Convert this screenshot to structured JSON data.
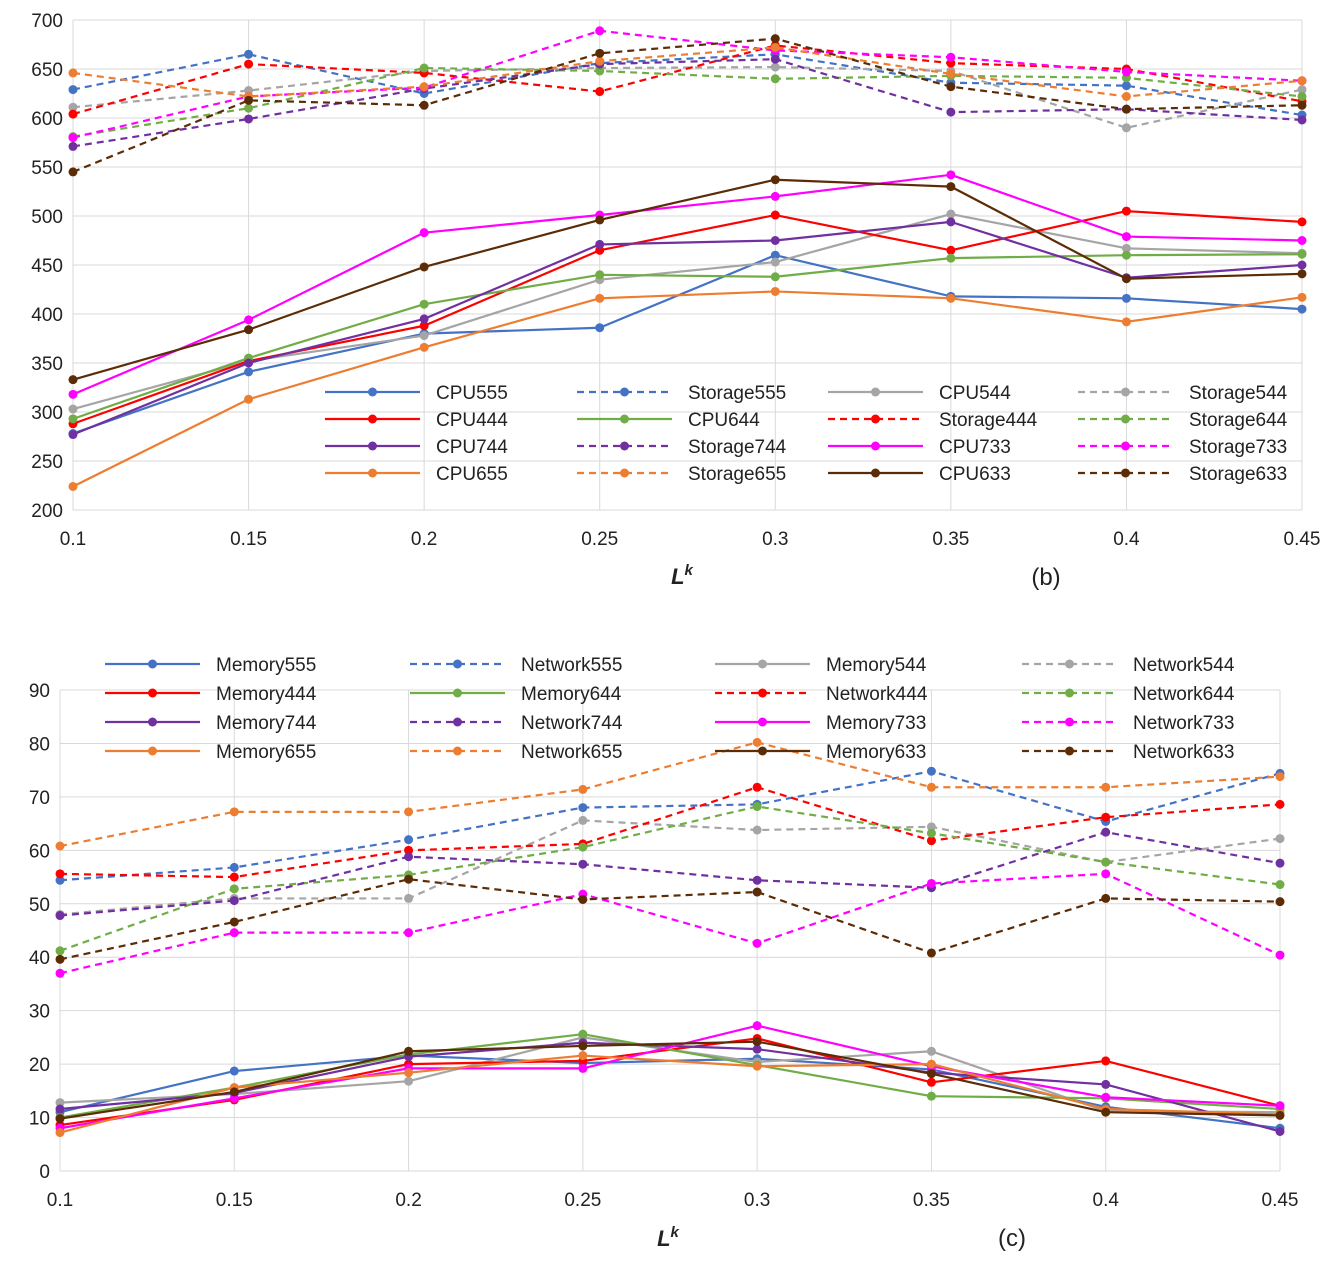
{
  "chart_data": [
    {
      "type": "line",
      "panel_label": "(b)",
      "xlabel": "L",
      "xlabel_sup": "k",
      "ylabel": "",
      "categories": [
        "0.1",
        "0.15",
        "0.2",
        "0.25",
        "0.3",
        "0.35",
        "0.4",
        "0.45"
      ],
      "ylim": [
        200,
        700
      ],
      "yticks": [
        "200",
        "250",
        "300",
        "350",
        "400",
        "450",
        "500",
        "550",
        "600",
        "650",
        "700"
      ],
      "legend_position": "inside-lower-right",
      "series": [
        {
          "name": "CPU555",
          "color": "#4472C4",
          "dash": false,
          "values": [
            278,
            341,
            380,
            386,
            460,
            418,
            416,
            405
          ]
        },
        {
          "name": "Storage555",
          "color": "#4472C4",
          "dash": true,
          "values": [
            629,
            665,
            625,
            656,
            665,
            636,
            633,
            603
          ]
        },
        {
          "name": "CPU544",
          "color": "#A5A5A5",
          "dash": false,
          "values": [
            303,
            352,
            378,
            435,
            453,
            502,
            467,
            462
          ]
        },
        {
          "name": "Storage544",
          "color": "#A5A5A5",
          "dash": true,
          "values": [
            611,
            628,
            648,
            651,
            652,
            648,
            590,
            629
          ]
        },
        {
          "name": "CPU444",
          "color": "#FF0000",
          "dash": false,
          "values": [
            288,
            352,
            388,
            465,
            501,
            465,
            505,
            494
          ]
        },
        {
          "name": "CPU644",
          "color": "#70AD47",
          "dash": false,
          "values": [
            293,
            355,
            410,
            440,
            438,
            457,
            460,
            461
          ]
        },
        {
          "name": "Storage444",
          "color": "#FF0000",
          "dash": true,
          "values": [
            604,
            655,
            646,
            627,
            674,
            656,
            650,
            617
          ]
        },
        {
          "name": "Storage644",
          "color": "#70AD47",
          "dash": true,
          "values": [
            581,
            610,
            651,
            648,
            640,
            643,
            641,
            622
          ]
        },
        {
          "name": "CPU744",
          "color": "#7030A0",
          "dash": false,
          "values": [
            277,
            350,
            395,
            471,
            475,
            494,
            437,
            450
          ]
        },
        {
          "name": "Storage744",
          "color": "#7030A0",
          "dash": true,
          "values": [
            571,
            599,
            630,
            655,
            660,
            606,
            609,
            598
          ]
        },
        {
          "name": "CPU733",
          "color": "#FF00FF",
          "dash": false,
          "values": [
            318,
            394,
            483,
            501,
            520,
            542,
            479,
            475
          ]
        },
        {
          "name": "Storage733",
          "color": "#FF00FF",
          "dash": true,
          "values": [
            580,
            622,
            631,
            689,
            669,
            662,
            647,
            638
          ]
        },
        {
          "name": "CPU655",
          "color": "#ED7D31",
          "dash": false,
          "values": [
            224,
            313,
            366,
            416,
            423,
            416,
            392,
            417
          ]
        },
        {
          "name": "Storage655",
          "color": "#ED7D31",
          "dash": true,
          "values": [
            646,
            622,
            632,
            658,
            672,
            645,
            622,
            638
          ]
        },
        {
          "name": "CPU633",
          "color": "#5B2C06",
          "dash": false,
          "values": [
            333,
            384,
            448,
            496,
            537,
            530,
            436,
            441
          ]
        },
        {
          "name": "Storage633",
          "color": "#5B2C06",
          "dash": true,
          "values": [
            545,
            618,
            613,
            666,
            681,
            632,
            609,
            613
          ]
        }
      ]
    },
    {
      "type": "line",
      "panel_label": "(c)",
      "xlabel": "L",
      "xlabel_sup": "k",
      "ylabel": "",
      "categories": [
        "0.1",
        "0.15",
        "0.2",
        "0.25",
        "0.3",
        "0.35",
        "0.4",
        "0.45"
      ],
      "ylim": [
        0,
        90
      ],
      "yticks": [
        "0",
        "10",
        "20",
        "30",
        "40",
        "50",
        "60",
        "70",
        "80",
        "90"
      ],
      "legend_position": "top",
      "series": [
        {
          "name": "Memory555",
          "color": "#4472C4",
          "dash": false,
          "values": [
            11,
            18.7,
            21.6,
            20.2,
            21,
            19,
            12,
            8
          ]
        },
        {
          "name": "Network555",
          "color": "#4472C4",
          "dash": true,
          "values": [
            54.4,
            56.8,
            62,
            68,
            68.6,
            74.8,
            65.4,
            74.4
          ]
        },
        {
          "name": "Memory544",
          "color": "#A5A5A5",
          "dash": false,
          "values": [
            12.8,
            14.4,
            16.8,
            25,
            20.4,
            22.4,
            11.2,
            11
          ]
        },
        {
          "name": "Network544",
          "color": "#A5A5A5",
          "dash": true,
          "values": [
            48,
            51,
            51,
            65.6,
            63.8,
            64.4,
            57.8,
            62.2
          ]
        },
        {
          "name": "Memory444",
          "color": "#FF0000",
          "dash": false,
          "values": [
            8.6,
            13.3,
            20,
            20.6,
            24.8,
            16.6,
            20.6,
            12.2
          ]
        },
        {
          "name": "Memory644",
          "color": "#70AD47",
          "dash": false,
          "values": [
            10,
            15.6,
            21.8,
            25.6,
            19.8,
            14,
            13.6,
            11.6
          ]
        },
        {
          "name": "Network444",
          "color": "#FF0000",
          "dash": true,
          "values": [
            55.6,
            55,
            60,
            61.2,
            71.8,
            61.8,
            66.2,
            68.6
          ]
        },
        {
          "name": "Network644",
          "color": "#70AD47",
          "dash": true,
          "values": [
            41.2,
            52.8,
            55.4,
            60.6,
            68.2,
            63.2,
            57.8,
            53.6
          ]
        },
        {
          "name": "Memory744",
          "color": "#7030A0",
          "dash": false,
          "values": [
            11.6,
            14.6,
            21.4,
            24,
            22.8,
            18.4,
            16.2,
            7.4
          ]
        },
        {
          "name": "Network744",
          "color": "#7030A0",
          "dash": true,
          "values": [
            47.8,
            50.6,
            58.8,
            57.4,
            54.4,
            53,
            63.4,
            57.6
          ]
        },
        {
          "name": "Memory733",
          "color": "#FF00FF",
          "dash": false,
          "values": [
            8,
            13.6,
            19.2,
            19.2,
            27.2,
            19.6,
            13.8,
            12.2
          ]
        },
        {
          "name": "Network733",
          "color": "#FF00FF",
          "dash": true,
          "values": [
            37,
            44.6,
            44.6,
            51.8,
            42.6,
            53.8,
            55.6,
            40.4
          ]
        },
        {
          "name": "Memory655",
          "color": "#ED7D31",
          "dash": false,
          "values": [
            7.2,
            15.6,
            18.4,
            21.6,
            19.6,
            20,
            11.6,
            10.6
          ]
        },
        {
          "name": "Network655",
          "color": "#ED7D31",
          "dash": true,
          "values": [
            60.8,
            67.2,
            67.2,
            71.4,
            80.2,
            71.8,
            71.8,
            73.8
          ]
        },
        {
          "name": "Memory633",
          "color": "#5B2C06",
          "dash": false,
          "values": [
            9.8,
            14.8,
            22.4,
            23.4,
            24.2,
            18.2,
            11,
            10.4
          ]
        },
        {
          "name": "Network633",
          "color": "#5B2C06",
          "dash": true,
          "values": [
            39.6,
            46.6,
            54.6,
            50.8,
            52.2,
            40.8,
            51,
            50.4
          ]
        }
      ]
    }
  ]
}
